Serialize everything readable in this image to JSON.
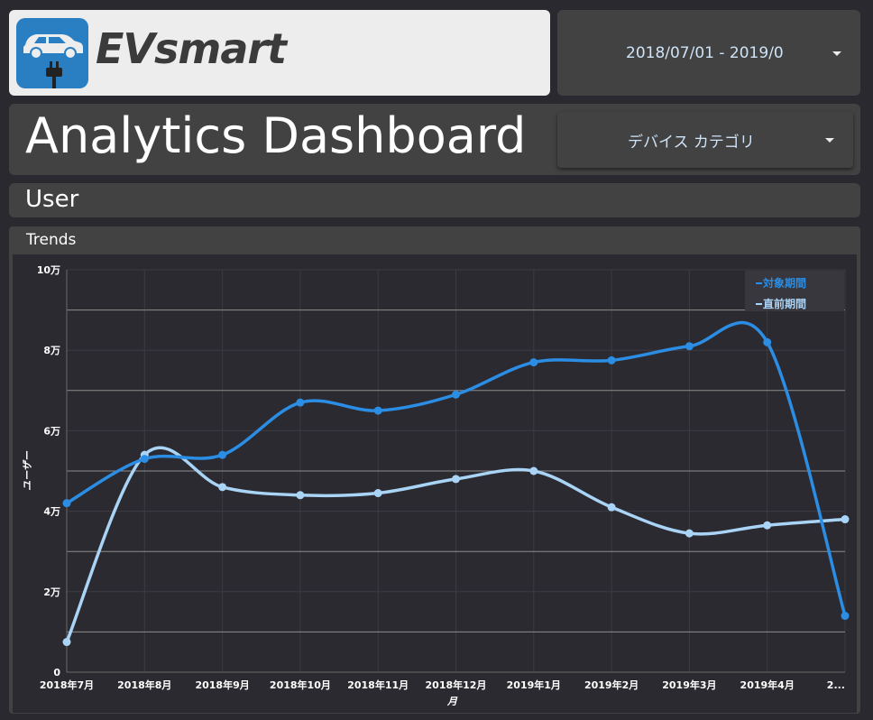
{
  "brand": {
    "name": "EVsmart"
  },
  "header": {
    "date_range": "2018/07/01 - 2019/0",
    "title": "Analytics Dashboard",
    "device_dropdown": "デバイス カテゴリ"
  },
  "section": {
    "title": "User"
  },
  "card": {
    "title": "Trends"
  },
  "colors": {
    "series_current": "#2b8de3",
    "series_previous": "#a9d4f6",
    "panel": "#424242",
    "chart_bg": "#2b2a30"
  },
  "chart_data": {
    "type": "line",
    "title": "",
    "xlabel": "月",
    "ylabel": "ユーザー",
    "categories": [
      "2018年7月",
      "2018年8月",
      "2018年9月",
      "2018年10月",
      "2018年11月",
      "2018年12月",
      "2019年1月",
      "2019年2月",
      "2019年3月",
      "2019年4月",
      "2..."
    ],
    "ylim": [
      0,
      100000
    ],
    "yticks": [
      0,
      20000,
      40000,
      60000,
      80000,
      100000
    ],
    "ytick_labels": [
      "0",
      "2万",
      "4万",
      "6万",
      "8万",
      "10万"
    ],
    "legend_position": "top-right",
    "series": [
      {
        "name": "対象期間",
        "values": [
          42000,
          53000,
          54000,
          67000,
          65000,
          69000,
          77000,
          77500,
          81000,
          82000,
          14000
        ]
      },
      {
        "name": "直前期間",
        "values": [
          7500,
          54000,
          46000,
          44000,
          44500,
          48000,
          50000,
          41000,
          34500,
          36500,
          38000
        ]
      }
    ]
  }
}
